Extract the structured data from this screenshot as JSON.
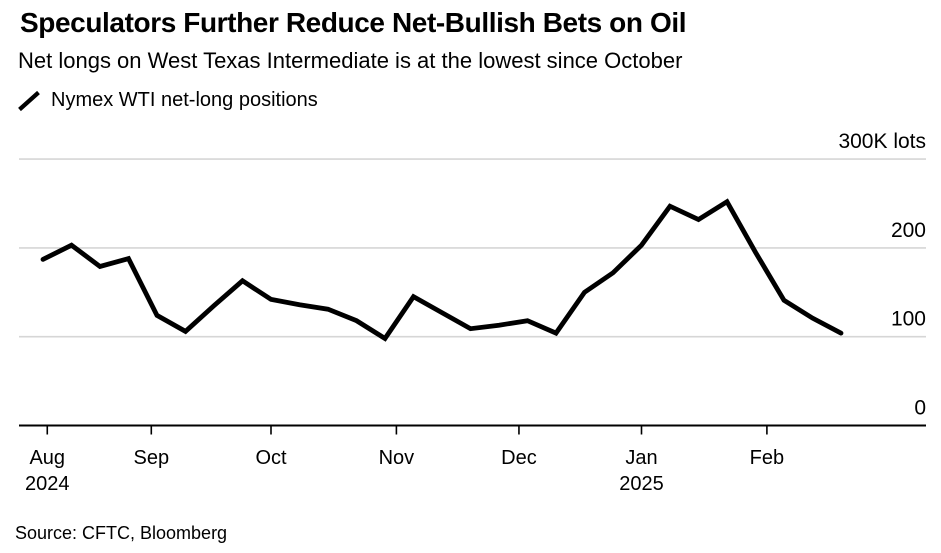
{
  "header": {
    "title": "Speculators Further Reduce Net-Bullish Bets on Oil",
    "subtitle": "Net longs on West Texas Intermediate is at the lowest since October"
  },
  "legend": {
    "icon": "line-slash-icon",
    "label": "Nymex WTI net-long positions"
  },
  "source": "Source: CFTC, Bloomberg",
  "chart_data": {
    "type": "line",
    "title": "Nymex WTI net-long positions",
    "unit": "K lots",
    "ylim": [
      0,
      300
    ],
    "grid": "horizontal",
    "legend_position": "top-left",
    "colors": {
      "line": "#000000",
      "grid": "#d6d6d6",
      "axis": "#000000",
      "text": "#000000"
    },
    "y_ticks": [
      {
        "value": 300,
        "label": "300K lots"
      },
      {
        "value": 200,
        "label": "200"
      },
      {
        "value": 100,
        "label": "100"
      },
      {
        "value": 0,
        "label": "0"
      }
    ],
    "x_ticks": [
      {
        "label": "Aug",
        "year": "2024",
        "index": 0.15
      },
      {
        "label": "Sep",
        "index": 3.8
      },
      {
        "label": "Oct",
        "index": 8.0
      },
      {
        "label": "Nov",
        "index": 12.4
      },
      {
        "label": "Dec",
        "index": 16.7
      },
      {
        "label": "Jan",
        "year": "2025",
        "index": 21.0
      },
      {
        "label": "Feb",
        "index": 25.4
      }
    ],
    "series": [
      {
        "name": "Nymex WTI net-long positions",
        "color": "#000000",
        "values": [
          187,
          203,
          179,
          188,
          124,
          106,
          135,
          163,
          142,
          136,
          131,
          118,
          98,
          145,
          127,
          109,
          113,
          118,
          104,
          150,
          172,
          203,
          247,
          232,
          252,
          195,
          141,
          121,
          104
        ]
      }
    ]
  }
}
